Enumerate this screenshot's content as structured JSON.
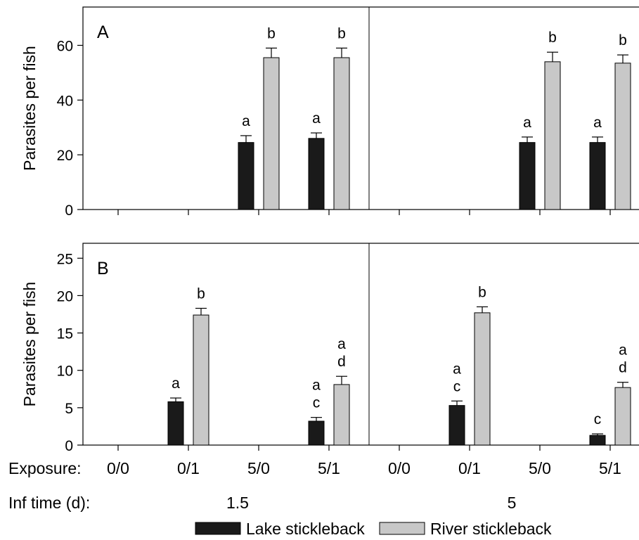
{
  "chart_data": [
    {
      "type": "bar",
      "panel_label": "A",
      "ylabel": "Parasites per fish",
      "ylim": [
        0,
        74
      ],
      "yticks": [
        0,
        20,
        40,
        60
      ],
      "groups": [
        {
          "categories": [
            "0/0",
            "0/1",
            "5/0",
            "5/1"
          ]
        },
        {
          "categories": [
            "0/0",
            "0/1",
            "5/0",
            "5/1"
          ]
        }
      ],
      "series": [
        {
          "name": "Lake stickleback",
          "color": "#1a1a1a",
          "values": [
            [
              0,
              0,
              24.5,
              26
            ],
            [
              0,
              0,
              24.5,
              24.5
            ]
          ],
          "errors": [
            [
              0,
              0,
              2.5,
              2
            ],
            [
              0,
              0,
              2,
              2
            ]
          ],
          "letters": [
            [
              [],
              [],
              [
                "a"
              ],
              [
                "a"
              ]
            ],
            [
              [],
              [],
              [
                "a"
              ],
              [
                "a"
              ]
            ]
          ]
        },
        {
          "name": "River stickleback",
          "color": "#c8c8c8",
          "values": [
            [
              0,
              0,
              55.5,
              55.5
            ],
            [
              0,
              0,
              54,
              53.5
            ]
          ],
          "errors": [
            [
              0,
              0,
              3.5,
              3.5
            ],
            [
              0,
              0,
              3.5,
              3
            ]
          ],
          "letters": [
            [
              [],
              [],
              [
                "b"
              ],
              [
                "b"
              ]
            ],
            [
              [],
              [],
              [
                "b"
              ],
              [
                "b"
              ]
            ]
          ]
        }
      ]
    },
    {
      "type": "bar",
      "panel_label": "B",
      "ylabel": "Parasites per fish",
      "ylim": [
        0,
        27
      ],
      "yticks": [
        0,
        5,
        10,
        15,
        20,
        25
      ],
      "groups": [
        {
          "categories": [
            "0/0",
            "0/1",
            "5/0",
            "5/1"
          ]
        },
        {
          "categories": [
            "0/0",
            "0/1",
            "5/0",
            "5/1"
          ]
        }
      ],
      "series": [
        {
          "name": "Lake stickleback",
          "color": "#1a1a1a",
          "values": [
            [
              0,
              5.8,
              0,
              3.2
            ],
            [
              0,
              5.3,
              0,
              1.3
            ]
          ],
          "errors": [
            [
              0,
              0.5,
              0,
              0.5
            ],
            [
              0,
              0.6,
              0,
              0.2
            ]
          ],
          "letters": [
            [
              [],
              [
                "a"
              ],
              [],
              [
                "a",
                "c"
              ]
            ],
            [
              [],
              [
                "a",
                "c"
              ],
              [],
              [
                "c"
              ]
            ]
          ]
        },
        {
          "name": "River stickleback",
          "color": "#c8c8c8",
          "values": [
            [
              0,
              17.4,
              0,
              8.1
            ],
            [
              0,
              17.7,
              0,
              7.7
            ]
          ],
          "errors": [
            [
              0,
              0.9,
              0,
              1.1
            ],
            [
              0,
              0.8,
              0,
              0.7
            ]
          ],
          "letters": [
            [
              [],
              [
                "b"
              ],
              [],
              [
                "a",
                "d"
              ]
            ],
            [
              [],
              [
                "b"
              ],
              [],
              [
                "a",
                "d"
              ]
            ]
          ]
        }
      ]
    }
  ],
  "xaxis": {
    "exposure_label": "Exposure:",
    "exposure_categories": [
      "0/0",
      "0/1",
      "5/0",
      "5/1",
      "0/0",
      "0/1",
      "5/0",
      "5/1"
    ],
    "inf_time_label": "Inf time (d):",
    "inf_time_values": [
      "1.5",
      "5"
    ]
  },
  "legend": {
    "placement": "bottom",
    "items": [
      {
        "label": "Lake stickleback",
        "color": "#1a1a1a"
      },
      {
        "label": "River stickleback",
        "color": "#c8c8c8"
      }
    ]
  }
}
